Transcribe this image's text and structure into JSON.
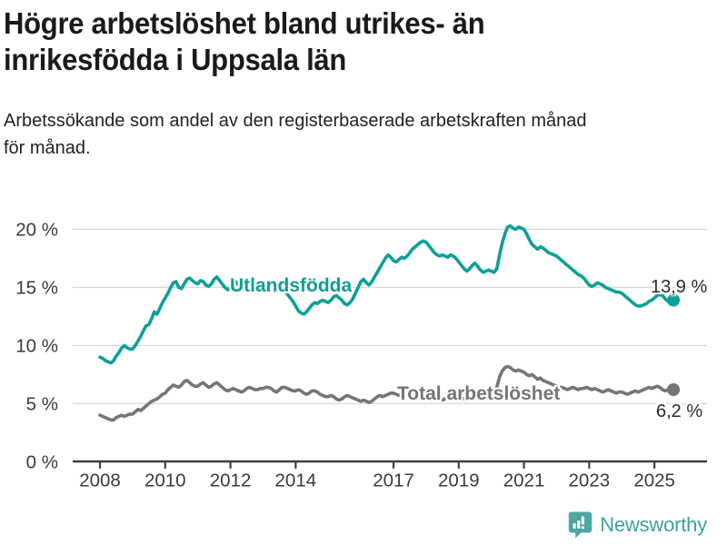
{
  "header": {
    "title": "Högre arbetslöshet bland utrikes- än\ninrikesfödda i Uppsala län",
    "subtitle": "Arbetssökande som andel av den registerbaserade arbetskraften månad\nför månad."
  },
  "chart_data": {
    "type": "line",
    "unit": "%",
    "x_interval": "monthly",
    "x_start_year": 2008,
    "x_end": "2025-08",
    "x_ticks": [
      2008,
      2010,
      2012,
      2014,
      2017,
      2019,
      2021,
      2023,
      2025
    ],
    "y_ticks": [
      0,
      5,
      10,
      15,
      20
    ],
    "y_tick_suffix": " %",
    "ylim": [
      0,
      21.5
    ],
    "grid": true,
    "legend_position": "inline-labels",
    "series": [
      {
        "name": "Utlandsfödda",
        "color": "#0DA096",
        "end_value": 13.9,
        "end_label": "13,9 %",
        "values": [
          9.0,
          8.9,
          8.7,
          8.6,
          8.5,
          8.7,
          9.1,
          9.4,
          9.8,
          10.0,
          9.8,
          9.7,
          9.7,
          10.0,
          10.4,
          10.8,
          11.3,
          11.7,
          11.8,
          12.3,
          12.9,
          12.7,
          13.2,
          13.7,
          14.1,
          14.5,
          15.0,
          15.4,
          15.5,
          15.0,
          14.9,
          15.3,
          15.7,
          15.8,
          15.6,
          15.4,
          15.3,
          15.6,
          15.5,
          15.2,
          15.1,
          15.3,
          15.7,
          15.9,
          15.6,
          15.3,
          15.0,
          14.8,
          15.0,
          15.4,
          15.5,
          15.2,
          15.0,
          15.2,
          15.5,
          15.6,
          15.4,
          15.3,
          15.4,
          15.5,
          15.4,
          15.5,
          15.3,
          15.1,
          14.9,
          15.0,
          15.2,
          15.0,
          14.7,
          14.4,
          14.1,
          13.8,
          13.4,
          13.0,
          12.8,
          12.7,
          12.9,
          13.2,
          13.5,
          13.7,
          13.6,
          13.8,
          13.9,
          13.8,
          13.7,
          13.9,
          14.2,
          14.3,
          14.1,
          13.9,
          13.6,
          13.5,
          13.7,
          14.0,
          14.5,
          15.0,
          15.5,
          15.7,
          15.4,
          15.2,
          15.5,
          15.9,
          16.3,
          16.7,
          17.1,
          17.5,
          17.8,
          17.6,
          17.3,
          17.2,
          17.4,
          17.6,
          17.5,
          17.7,
          18.0,
          18.3,
          18.5,
          18.7,
          18.9,
          19.0,
          18.9,
          18.6,
          18.3,
          18.0,
          17.8,
          17.7,
          17.8,
          17.7,
          17.6,
          17.8,
          17.7,
          17.5,
          17.2,
          16.9,
          16.6,
          16.4,
          16.6,
          16.9,
          17.1,
          16.8,
          16.5,
          16.3,
          16.4,
          16.5,
          16.4,
          16.3,
          16.6,
          17.8,
          18.8,
          19.6,
          20.2,
          20.3,
          20.1,
          20.0,
          20.2,
          20.1,
          20.0,
          19.6,
          19.1,
          18.7,
          18.5,
          18.3,
          18.5,
          18.4,
          18.2,
          18.0,
          17.9,
          17.8,
          17.7,
          17.5,
          17.3,
          17.1,
          16.9,
          16.7,
          16.5,
          16.3,
          16.1,
          16.0,
          15.8,
          15.5,
          15.2,
          15.1,
          15.2,
          15.4,
          15.3,
          15.2,
          15.0,
          14.9,
          14.8,
          14.7,
          14.6,
          14.6,
          14.5,
          14.3,
          14.1,
          13.9,
          13.7,
          13.5,
          13.4,
          13.4,
          13.5,
          13.6,
          13.8,
          13.9,
          14.1,
          14.3,
          14.4,
          14.3,
          14.0,
          13.8,
          13.7,
          13.9
        ]
      },
      {
        "name": "Total arbetslöshet",
        "color": "#757578",
        "end_value": 6.2,
        "end_label": "6,2 %",
        "values": [
          4.0,
          3.9,
          3.8,
          3.7,
          3.6,
          3.6,
          3.8,
          3.9,
          4.0,
          3.9,
          4.0,
          4.1,
          4.1,
          4.3,
          4.5,
          4.4,
          4.6,
          4.8,
          5.0,
          5.2,
          5.3,
          5.4,
          5.6,
          5.8,
          5.9,
          6.2,
          6.4,
          6.6,
          6.5,
          6.4,
          6.6,
          6.9,
          7.0,
          6.8,
          6.6,
          6.5,
          6.5,
          6.7,
          6.8,
          6.6,
          6.4,
          6.5,
          6.7,
          6.8,
          6.6,
          6.4,
          6.2,
          6.1,
          6.2,
          6.3,
          6.2,
          6.1,
          6.0,
          6.1,
          6.3,
          6.4,
          6.3,
          6.2,
          6.2,
          6.3,
          6.3,
          6.4,
          6.4,
          6.3,
          6.1,
          6.0,
          6.2,
          6.4,
          6.4,
          6.3,
          6.2,
          6.1,
          6.1,
          6.2,
          6.1,
          5.9,
          5.8,
          5.9,
          6.1,
          6.1,
          6.0,
          5.8,
          5.7,
          5.6,
          5.6,
          5.7,
          5.6,
          5.4,
          5.3,
          5.4,
          5.6,
          5.7,
          5.6,
          5.5,
          5.4,
          5.3,
          5.2,
          5.3,
          5.2,
          5.1,
          5.2,
          5.4,
          5.6,
          5.7,
          5.6,
          5.7,
          5.8,
          5.9,
          5.9,
          5.8,
          5.7,
          5.8,
          5.9,
          5.8,
          5.7,
          5.8,
          5.7,
          5.6,
          5.5,
          5.6,
          5.5,
          5.4,
          5.3,
          5.4,
          5.5,
          5.4,
          5.3,
          5.4,
          5.5,
          5.4,
          5.3,
          5.4,
          5.4,
          5.5,
          5.4,
          5.3,
          5.4,
          5.6,
          5.7,
          5.6,
          5.5,
          5.6,
          5.7,
          5.8,
          5.9,
          6.0,
          6.4,
          7.3,
          7.8,
          8.1,
          8.2,
          8.1,
          7.9,
          7.8,
          7.9,
          7.8,
          7.7,
          7.5,
          7.4,
          7.5,
          7.3,
          7.1,
          7.2,
          7.0,
          6.9,
          6.8,
          6.7,
          6.6,
          6.5,
          6.4,
          6.4,
          6.3,
          6.2,
          6.3,
          6.4,
          6.3,
          6.2,
          6.3,
          6.3,
          6.4,
          6.3,
          6.2,
          6.3,
          6.2,
          6.1,
          6.0,
          6.1,
          6.2,
          6.1,
          6.0,
          5.9,
          6.0,
          6.0,
          5.9,
          5.8,
          5.9,
          6.0,
          6.1,
          6.0,
          6.1,
          6.2,
          6.3,
          6.4,
          6.3,
          6.4,
          6.5,
          6.4,
          6.2,
          6.1,
          6.2,
          6.3,
          6.2
        ]
      }
    ],
    "colors": {
      "grid": "#d9d9d9",
      "axis": "#3f3f3f",
      "tick_label": "#3b3b3b",
      "value_label": "#2b2b2b"
    }
  },
  "logo": {
    "text": "Newsworthy",
    "icon": "bar-chart-speech-bubble-icon",
    "color": "#3EA39C",
    "icon_color": "#4CA8A1"
  }
}
